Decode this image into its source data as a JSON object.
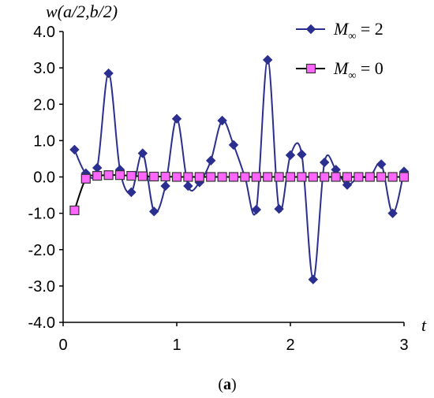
{
  "chart_data": {
    "type": "line",
    "ylabel": "w(a/2,b/2)",
    "xlabel": "t",
    "caption": {
      "open": "(",
      "letter": "a",
      "close": ")"
    },
    "xlim": [
      0,
      3
    ],
    "ylim": [
      -4,
      4
    ],
    "xticks": [
      0,
      1,
      2,
      3
    ],
    "xtick_labels": [
      "0",
      "1",
      "2",
      "3"
    ],
    "yticks": [
      -4,
      -3,
      -2,
      -1,
      0,
      1,
      2,
      3,
      4
    ],
    "ytick_labels": [
      "-4.0",
      "-3.0",
      "-2.0",
      "-1.0",
      "0.0",
      "1.0",
      "2.0",
      "3.0",
      "4.0"
    ],
    "grid": false,
    "legend_position": "top-right",
    "series": [
      {
        "name": "M∞ = 2",
        "legend": {
          "symbol": "M",
          "subscript": "∞",
          "rest": " = 2"
        },
        "color": "#2b2f8f",
        "marker": "diamond",
        "x": [
          0.1,
          0.2,
          0.3,
          0.4,
          0.5,
          0.6,
          0.7,
          0.8,
          0.9,
          1.0,
          1.1,
          1.2,
          1.3,
          1.4,
          1.5,
          1.6,
          1.7,
          1.8,
          1.9,
          2.0,
          2.1,
          2.2,
          2.3,
          2.4,
          2.5,
          2.6,
          2.7,
          2.8,
          2.9,
          3.0
        ],
        "values": [
          0.75,
          0.1,
          0.25,
          2.85,
          0.2,
          -0.42,
          0.65,
          -0.95,
          -0.25,
          1.6,
          -0.25,
          -0.15,
          0.45,
          1.55,
          0.88,
          0.0,
          -0.9,
          3.22,
          -0.88,
          0.6,
          0.62,
          -2.82,
          0.4,
          0.2,
          -0.22,
          0.0,
          0.0,
          0.35,
          -1.0,
          0.15
        ]
      },
      {
        "name": "M∞ = 0",
        "legend": {
          "symbol": "M",
          "subscript": "∞",
          "rest": " = 0"
        },
        "color": "#ff66ff",
        "line_color": "#000000",
        "marker": "square",
        "x": [
          0.1,
          0.2,
          0.3,
          0.4,
          0.5,
          0.6,
          0.7,
          0.8,
          0.9,
          1.0,
          1.1,
          1.2,
          1.3,
          1.4,
          1.5,
          1.6,
          1.7,
          1.8,
          1.9,
          2.0,
          2.1,
          2.2,
          2.3,
          2.4,
          2.5,
          2.6,
          2.7,
          2.8,
          2.9,
          3.0
        ],
        "values": [
          -0.92,
          -0.05,
          0.03,
          0.05,
          0.05,
          0.03,
          0.02,
          0.01,
          0.01,
          0.0,
          0.0,
          0.0,
          0.0,
          0.0,
          0.0,
          0.0,
          0.0,
          0.0,
          0.0,
          0.0,
          0.0,
          0.0,
          0.0,
          0.0,
          0.0,
          0.0,
          0.0,
          0.0,
          0.0,
          0.0
        ]
      }
    ]
  }
}
